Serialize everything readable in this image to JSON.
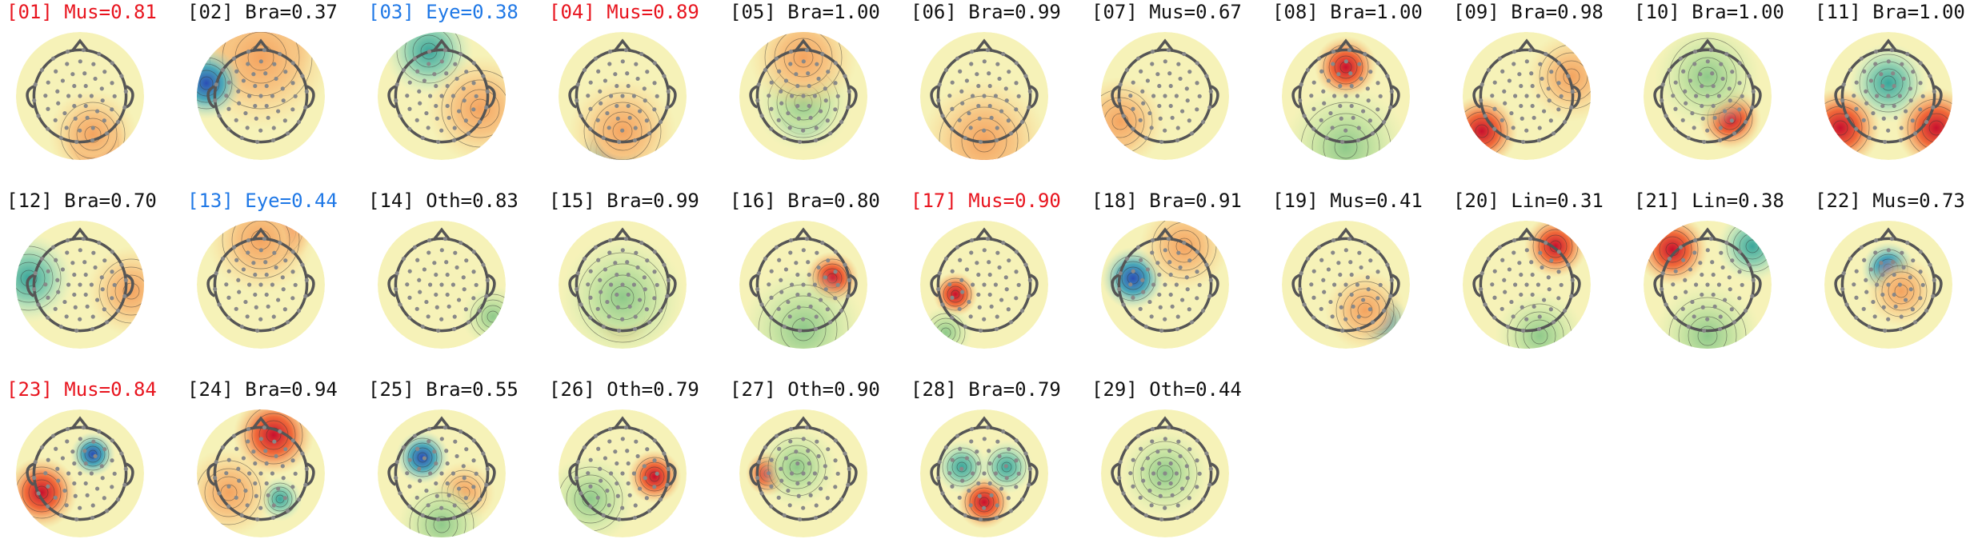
{
  "colors": {
    "label_muscle": "#e8141e",
    "label_eye": "#1f78e6",
    "label_default": "#111111",
    "head_outline": "#555555",
    "electrode": "#888888",
    "contour": "#333333"
  },
  "components": [
    {
      "index": "01",
      "type": "Mus",
      "prob": "0.81",
      "color_key": "label_muscle"
    },
    {
      "index": "02",
      "type": "Bra",
      "prob": "0.37",
      "color_key": "label_default"
    },
    {
      "index": "03",
      "type": "Eye",
      "prob": "0.38",
      "color_key": "label_eye"
    },
    {
      "index": "04",
      "type": "Mus",
      "prob": "0.89",
      "color_key": "label_muscle"
    },
    {
      "index": "05",
      "type": "Bra",
      "prob": "1.00",
      "color_key": "label_default"
    },
    {
      "index": "06",
      "type": "Bra",
      "prob": "0.99",
      "color_key": "label_default"
    },
    {
      "index": "07",
      "type": "Mus",
      "prob": "0.67",
      "color_key": "label_default"
    },
    {
      "index": "08",
      "type": "Bra",
      "prob": "1.00",
      "color_key": "label_default"
    },
    {
      "index": "09",
      "type": "Bra",
      "prob": "0.98",
      "color_key": "label_default"
    },
    {
      "index": "10",
      "type": "Bra",
      "prob": "1.00",
      "color_key": "label_default"
    },
    {
      "index": "11",
      "type": "Bra",
      "prob": "1.00",
      "color_key": "label_default"
    },
    {
      "index": "12",
      "type": "Bra",
      "prob": "0.70",
      "color_key": "label_default"
    },
    {
      "index": "13",
      "type": "Eye",
      "prob": "0.44",
      "color_key": "label_eye"
    },
    {
      "index": "14",
      "type": "Oth",
      "prob": "0.83",
      "color_key": "label_default"
    },
    {
      "index": "15",
      "type": "Bra",
      "prob": "0.99",
      "color_key": "label_default"
    },
    {
      "index": "16",
      "type": "Bra",
      "prob": "0.80",
      "color_key": "label_default"
    },
    {
      "index": "17",
      "type": "Mus",
      "prob": "0.90",
      "color_key": "label_muscle"
    },
    {
      "index": "18",
      "type": "Bra",
      "prob": "0.91",
      "color_key": "label_default"
    },
    {
      "index": "19",
      "type": "Mus",
      "prob": "0.41",
      "color_key": "label_default"
    },
    {
      "index": "20",
      "type": "Lin",
      "prob": "0.31",
      "color_key": "label_default"
    },
    {
      "index": "21",
      "type": "Lin",
      "prob": "0.38",
      "color_key": "label_default"
    },
    {
      "index": "22",
      "type": "Mus",
      "prob": "0.73",
      "color_key": "label_default"
    },
    {
      "index": "23",
      "type": "Mus",
      "prob": "0.84",
      "color_key": "label_muscle"
    },
    {
      "index": "24",
      "type": "Bra",
      "prob": "0.94",
      "color_key": "label_default"
    },
    {
      "index": "25",
      "type": "Bra",
      "prob": "0.55",
      "color_key": "label_default"
    },
    {
      "index": "26",
      "type": "Oth",
      "prob": "0.79",
      "color_key": "label_default"
    },
    {
      "index": "27",
      "type": "Oth",
      "prob": "0.90",
      "color_key": "label_default"
    },
    {
      "index": "28",
      "type": "Bra",
      "prob": "0.79",
      "color_key": "label_default"
    },
    {
      "index": "29",
      "type": "Oth",
      "prob": "0.44",
      "color_key": "label_default"
    }
  ]
}
